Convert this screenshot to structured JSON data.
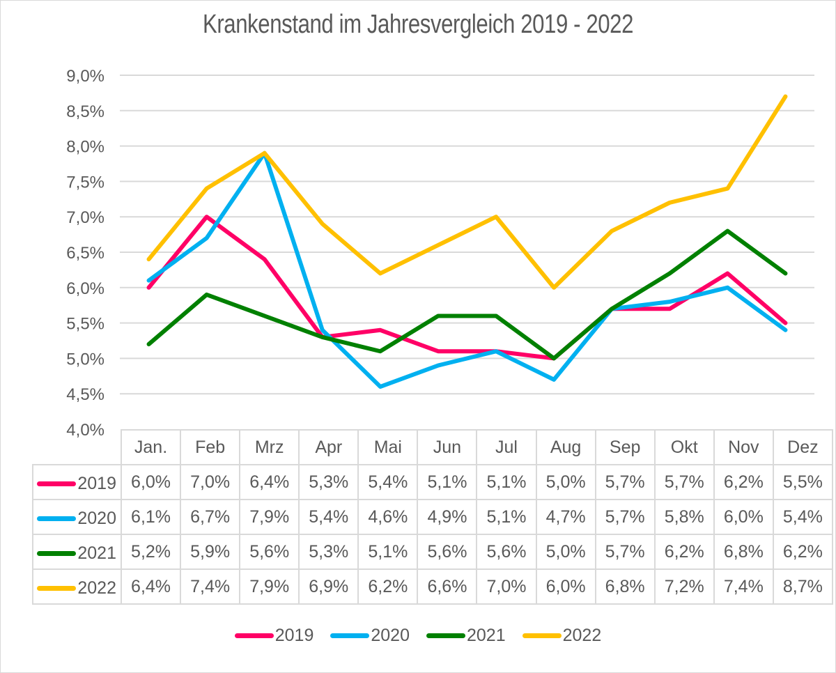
{
  "chart_data": {
    "type": "line",
    "title": "Krankenstand im Jahresvergleich 2019 - 2022",
    "xlabel": "",
    "ylabel": "",
    "ylim": [
      4.0,
      9.0
    ],
    "ytick_step": 0.5,
    "y_ticks": [
      "4,0%",
      "4,5%",
      "5,0%",
      "5,5%",
      "6,0%",
      "6,5%",
      "7,0%",
      "7,5%",
      "8,0%",
      "8,5%",
      "9,0%"
    ],
    "grid": true,
    "legend_position": "bottom",
    "categories": [
      "Jan.",
      "Feb",
      "Mrz",
      "Apr",
      "Mai",
      "Jun",
      "Jul",
      "Aug",
      "Sep",
      "Okt",
      "Nov",
      "Dez"
    ],
    "series": [
      {
        "name": "2019",
        "color": "#ff0066",
        "values": [
          6.0,
          7.0,
          6.4,
          5.3,
          5.4,
          5.1,
          5.1,
          5.0,
          5.7,
          5.7,
          6.2,
          5.5
        ],
        "labels": [
          "6,0%",
          "7,0%",
          "6,4%",
          "5,3%",
          "5,4%",
          "5,1%",
          "5,1%",
          "5,0%",
          "5,7%",
          "5,7%",
          "6,2%",
          "5,5%"
        ]
      },
      {
        "name": "2020",
        "color": "#00b0f0",
        "values": [
          6.1,
          6.7,
          7.9,
          5.4,
          4.6,
          4.9,
          5.1,
          4.7,
          5.7,
          5.8,
          6.0,
          5.4
        ],
        "labels": [
          "6,1%",
          "6,7%",
          "7,9%",
          "5,4%",
          "4,6%",
          "4,9%",
          "5,1%",
          "4,7%",
          "5,7%",
          "5,8%",
          "6,0%",
          "5,4%"
        ]
      },
      {
        "name": "2021",
        "color": "#008000",
        "values": [
          5.2,
          5.9,
          5.6,
          5.3,
          5.1,
          5.6,
          5.6,
          5.0,
          5.7,
          6.2,
          6.8,
          6.2
        ],
        "labels": [
          "5,2%",
          "5,9%",
          "5,6%",
          "5,3%",
          "5,1%",
          "5,6%",
          "5,6%",
          "5,0%",
          "5,7%",
          "6,2%",
          "6,8%",
          "6,2%"
        ]
      },
      {
        "name": "2022",
        "color": "#ffc000",
        "values": [
          6.4,
          7.4,
          7.9,
          6.9,
          6.2,
          6.6,
          7.0,
          6.0,
          6.8,
          7.2,
          7.4,
          8.7
        ],
        "labels": [
          "6,4%",
          "7,4%",
          "7,9%",
          "6,9%",
          "6,2%",
          "6,6%",
          "7,0%",
          "6,0%",
          "6,8%",
          "7,2%",
          "7,4%",
          "8,7%"
        ]
      }
    ]
  }
}
